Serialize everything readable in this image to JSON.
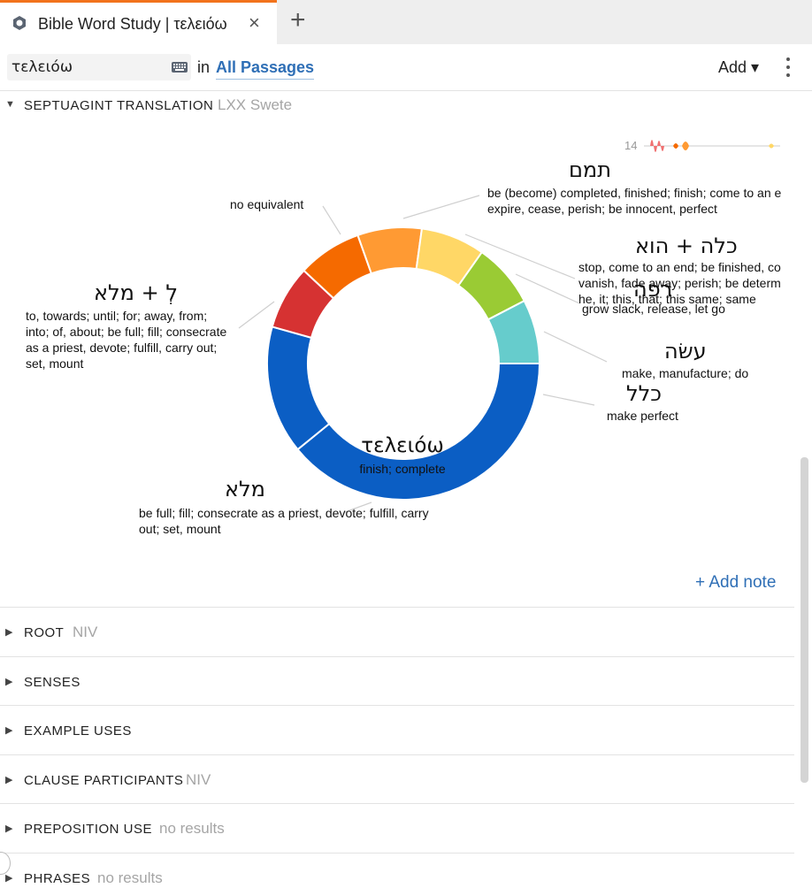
{
  "tab": {
    "title": "Bible Word Study | τελειόω",
    "icon": "logos-hexagon-icon",
    "close": "×",
    "add": "+"
  },
  "toolbar": {
    "search_value": "τελειόω",
    "keyboard_icon": "keyboard-icon",
    "in_label": "in",
    "passages_label": "All Passages",
    "add_label": "Add ▾",
    "more_icon": "vertical-dots-icon"
  },
  "septuagint": {
    "title": "SEPTUAGINT TRANSLATION",
    "subtitle": "LXX Swete",
    "sparkline_count": "14",
    "center": {
      "word": "τελειόω",
      "gloss": "finish; complete"
    },
    "add_note": "+ Add note"
  },
  "chart_data": {
    "type": "pie",
    "donut": true,
    "center_label": "τελειόω",
    "slices": [
      {
        "label": "מלא",
        "gloss": "be full; fill; consecrate as a priest, devote; fulfill, carry out; set, mount",
        "value": 36,
        "color": "#0b5ec4"
      },
      {
        "label": "ל + מלא",
        "gloss": "to, towards; until; for; away, from; into; of, about; be full; fill; consecrate as a priest, devote; fulfill, carry out; set, mount",
        "value": 14,
        "color": "#0b5ec4"
      },
      {
        "label": "no equivalent",
        "gloss": "",
        "value": 7,
        "color": "#d63232"
      },
      {
        "label": "תמם",
        "gloss": "be (become) completed, finished; finish; come to an end; expire, cease, perish; be innocent, perfect",
        "value": 7,
        "color": "#f56a00"
      },
      {
        "label": "כלה + הוא",
        "gloss": "stop, come to an end; be finished, completed; vanish, fade away; perish; be determined; he, it; this, that; this same; same",
        "value": 7,
        "color": "#ff9a33"
      },
      {
        "label": "רפה",
        "gloss": "grow slack, release, let go",
        "value": 7,
        "color": "#ffd766"
      },
      {
        "label": "עשׂה",
        "gloss": "make, manufacture; do",
        "value": 7,
        "color": "#9acb34"
      },
      {
        "label": "כלל",
        "gloss": "make perfect",
        "value": 7,
        "color": "#66cccc"
      }
    ]
  },
  "labels": {
    "no_equiv": "no equivalent",
    "tamam": "תמם",
    "tamam_gloss1": "be (become) completed, finished; finish; come to an end;",
    "tamam_gloss2": "expire, cease, perish; be innocent, perfect",
    "kalah": "כלה + הוא",
    "kalah_gloss1": "stop, come to an end; be finished, completed;",
    "kalah_gloss2": "vanish, fade away; perish; be determined;",
    "kalah_gloss3": "he, it; this, that; this same; same",
    "rafah": "רפה",
    "rafah_gloss": "grow slack, release, let go",
    "asah": "עשׂה",
    "asah_gloss": "make, manufacture; do",
    "kalal": "כלל",
    "kalal_gloss": "make perfect",
    "lemale": "לְ + מלא",
    "lemale_gloss1": "to, towards; until; for; away, from;",
    "lemale_gloss2": "into; of, about; be full; fill; consecrate",
    "lemale_gloss3": "as a priest, devote; fulfill, carry out;",
    "lemale_gloss4": "set, mount",
    "male": "מלא",
    "male_gloss1": "be full; fill; consecrate as a priest, devote; fulfill, carry",
    "male_gloss2": "out; set, mount"
  },
  "sections": [
    {
      "title": "ROOT",
      "subtitle": "NIV"
    },
    {
      "title": "SENSES",
      "subtitle": ""
    },
    {
      "title": "EXAMPLE USES",
      "subtitle": ""
    },
    {
      "title": "CLAUSE PARTICIPANTS",
      "subtitle": "NIV"
    },
    {
      "title": "PREPOSITION USE",
      "subtitle": "no results"
    },
    {
      "title": "PHRASES",
      "subtitle": "no results"
    }
  ]
}
